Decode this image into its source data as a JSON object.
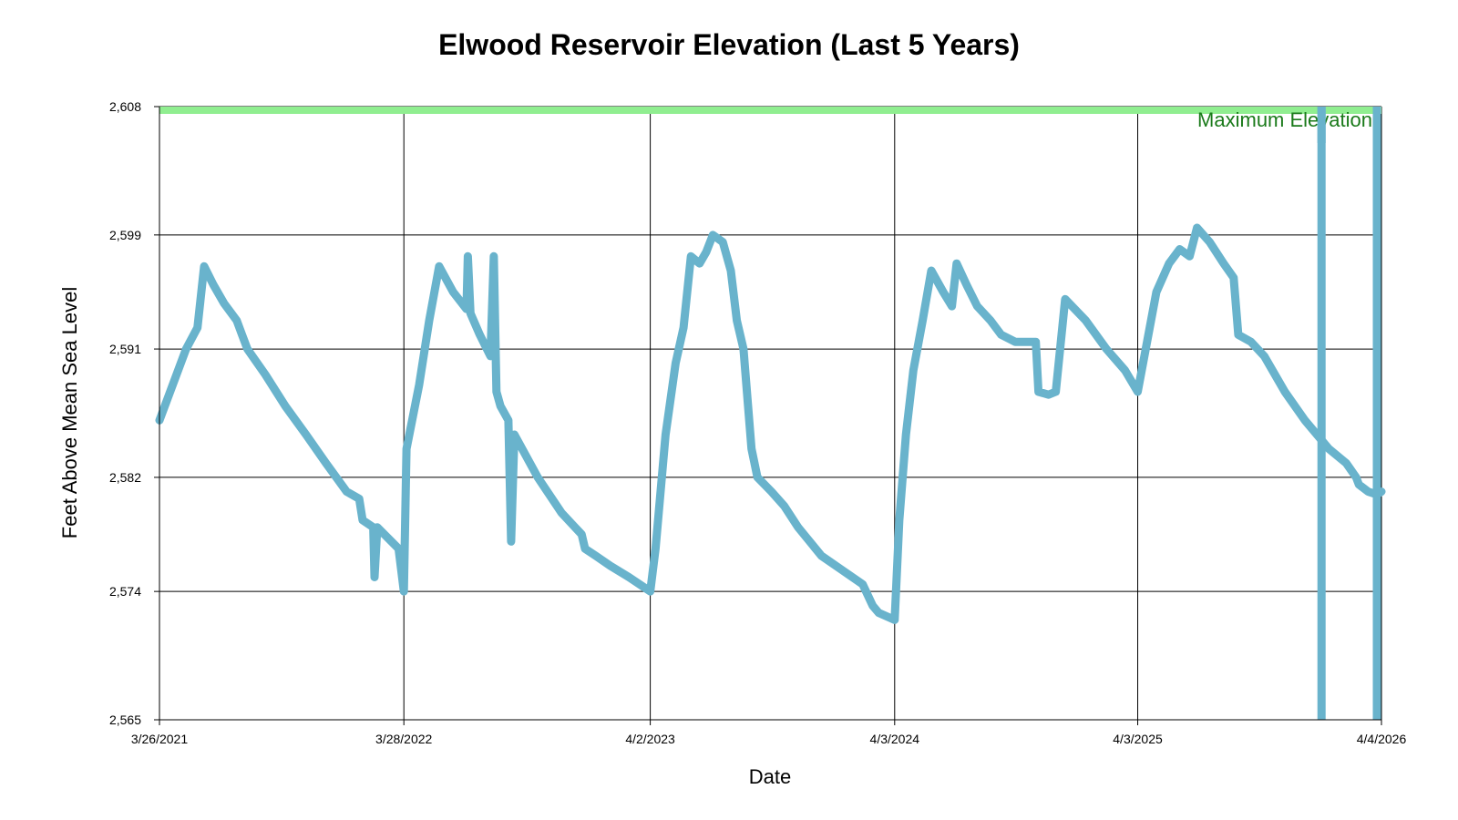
{
  "chart_data": {
    "type": "line",
    "title": "Elwood Reservoir Elevation (Last 5 Years)",
    "xlabel": "Date",
    "ylabel": "Feet Above Mean Sea Level",
    "xlim": [
      "2021-03-26",
      "2026-04-04"
    ],
    "ylim": [
      2565,
      2608
    ],
    "x_ticks": [
      {
        "date": "2021-03-26",
        "label": "3/26/2021"
      },
      {
        "date": "2022-03-28",
        "label": "3/28/2022"
      },
      {
        "date": "2023-04-02",
        "label": "4/2/2023"
      },
      {
        "date": "2024-04-03",
        "label": "4/3/2024"
      },
      {
        "date": "2025-04-03",
        "label": "4/3/2025"
      },
      {
        "date": "2026-04-04",
        "label": "4/4/2026"
      }
    ],
    "y_ticks": [
      {
        "value": 2565,
        "label": "2,565"
      },
      {
        "value": 2574,
        "label": "2,574"
      },
      {
        "value": 2582,
        "label": "2,582"
      },
      {
        "value": 2591,
        "label": "2,591"
      },
      {
        "value": 2599,
        "label": "2,599"
      },
      {
        "value": 2608,
        "label": "2,608"
      }
    ],
    "grid": true,
    "colors": {
      "series": "#69b3cc",
      "reference": "#90ee90",
      "reference_text": "#1a7a1a"
    },
    "reference_line": {
      "value": 2608,
      "label": "Maximum Elevation"
    },
    "series": [
      {
        "points": [
          [
            "2021-03-26",
            2586.0
          ],
          [
            "2021-04-15",
            2588.5
          ],
          [
            "2021-05-05",
            2591.0
          ],
          [
            "2021-05-22",
            2592.5
          ],
          [
            "2021-06-01",
            2596.8
          ],
          [
            "2021-06-15",
            2595.5
          ],
          [
            "2021-07-01",
            2594.2
          ],
          [
            "2021-07-20",
            2593.0
          ],
          [
            "2021-07-28",
            2592.0
          ],
          [
            "2021-08-05",
            2591.0
          ],
          [
            "2021-09-01",
            2589.2
          ],
          [
            "2021-10-01",
            2587.0
          ],
          [
            "2021-11-01",
            2585.0
          ],
          [
            "2021-12-01",
            2583.0
          ],
          [
            "2022-01-01",
            2581.0
          ],
          [
            "2022-01-20",
            2580.5
          ],
          [
            "2022-01-25",
            2579.0
          ],
          [
            "2022-02-10",
            2578.5
          ],
          [
            "2022-02-12",
            2575.0
          ],
          [
            "2022-02-16",
            2578.5
          ],
          [
            "2022-03-20",
            2577.0
          ],
          [
            "2022-03-28",
            2574.0
          ],
          [
            "2022-04-01",
            2584.0
          ],
          [
            "2022-04-20",
            2588.5
          ],
          [
            "2022-05-05",
            2593.0
          ],
          [
            "2022-05-20",
            2596.8
          ],
          [
            "2022-06-10",
            2595.0
          ],
          [
            "2022-06-30",
            2593.8
          ],
          [
            "2022-07-02",
            2597.5
          ],
          [
            "2022-07-06",
            2593.5
          ],
          [
            "2022-07-20",
            2592.0
          ],
          [
            "2022-08-05",
            2590.5
          ],
          [
            "2022-08-10",
            2597.5
          ],
          [
            "2022-08-14",
            2588.0
          ],
          [
            "2022-08-20",
            2587.0
          ],
          [
            "2022-09-01",
            2586.0
          ],
          [
            "2022-09-05",
            2577.5
          ],
          [
            "2022-09-10",
            2585.0
          ],
          [
            "2022-10-15",
            2582.0
          ],
          [
            "2022-11-20",
            2579.5
          ],
          [
            "2022-12-20",
            2578.0
          ],
          [
            "2022-12-25",
            2577.0
          ],
          [
            "2023-01-10",
            2576.5
          ],
          [
            "2023-02-01",
            2575.8
          ],
          [
            "2023-03-01",
            2575.0
          ],
          [
            "2023-04-02",
            2574.0
          ],
          [
            "2023-04-10",
            2577.0
          ],
          [
            "2023-04-25",
            2585.0
          ],
          [
            "2023-05-10",
            2590.0
          ],
          [
            "2023-05-22",
            2592.5
          ],
          [
            "2023-06-02",
            2597.5
          ],
          [
            "2023-06-15",
            2597.0
          ],
          [
            "2023-06-25",
            2597.8
          ],
          [
            "2023-07-05",
            2599.0
          ],
          [
            "2023-07-20",
            2598.5
          ],
          [
            "2023-08-01",
            2596.5
          ],
          [
            "2023-08-10",
            2593.0
          ],
          [
            "2023-08-20",
            2591.0
          ],
          [
            "2023-09-01",
            2584.0
          ],
          [
            "2023-09-10",
            2582.0
          ],
          [
            "2023-10-01",
            2581.0
          ],
          [
            "2023-10-20",
            2580.0
          ],
          [
            "2023-11-10",
            2578.5
          ],
          [
            "2023-12-15",
            2576.5
          ],
          [
            "2024-01-15",
            2575.5
          ],
          [
            "2024-02-15",
            2574.5
          ],
          [
            "2024-03-01",
            2573.0
          ],
          [
            "2024-03-10",
            2572.5
          ],
          [
            "2024-04-03",
            2572.0
          ],
          [
            "2024-04-10",
            2579.0
          ],
          [
            "2024-04-20",
            2585.0
          ],
          [
            "2024-05-01",
            2589.5
          ],
          [
            "2024-05-15",
            2593.0
          ],
          [
            "2024-05-28",
            2596.5
          ],
          [
            "2024-06-15",
            2595.0
          ],
          [
            "2024-06-28",
            2594.0
          ],
          [
            "2024-07-05",
            2597.0
          ],
          [
            "2024-07-20",
            2595.5
          ],
          [
            "2024-08-05",
            2594.0
          ],
          [
            "2024-08-25",
            2593.0
          ],
          [
            "2024-09-10",
            2592.0
          ],
          [
            "2024-10-01",
            2591.5
          ],
          [
            "2024-11-01",
            2591.5
          ],
          [
            "2024-11-05",
            2588.0
          ],
          [
            "2024-11-20",
            2587.8
          ],
          [
            "2024-12-01",
            2588.0
          ],
          [
            "2024-12-15",
            2594.5
          ],
          [
            "2025-01-15",
            2593.0
          ],
          [
            "2025-02-15",
            2591.0
          ],
          [
            "2025-03-15",
            2589.5
          ],
          [
            "2025-04-03",
            2588.0
          ],
          [
            "2025-04-15",
            2591.0
          ],
          [
            "2025-05-01",
            2595.0
          ],
          [
            "2025-05-20",
            2597.0
          ],
          [
            "2025-06-05",
            2598.0
          ],
          [
            "2025-06-20",
            2597.5
          ],
          [
            "2025-07-01",
            2599.5
          ],
          [
            "2025-07-20",
            2598.5
          ],
          [
            "2025-08-10",
            2597.0
          ],
          [
            "2025-08-25",
            2596.0
          ],
          [
            "2025-09-01",
            2592.0
          ],
          [
            "2025-09-20",
            2591.5
          ],
          [
            "2025-10-10",
            2590.5
          ],
          [
            "2025-11-10",
            2588.0
          ],
          [
            "2025-12-10",
            2586.0
          ],
          [
            "2026-01-15",
            2584.0
          ],
          [
            "2026-02-10",
            2583.0
          ],
          [
            "2026-02-25",
            2582.0
          ],
          [
            "2026-03-01",
            2581.5
          ],
          [
            "2026-03-15",
            2581.0
          ],
          [
            "2026-03-28",
            2580.8
          ],
          [
            "2026-04-04",
            2581.0
          ]
        ]
      }
    ],
    "drops": [
      {
        "date": "2026-01-04",
        "from": 2608,
        "to": 2565
      },
      {
        "date": "2026-04-04",
        "from": 2608,
        "to": 2565
      }
    ]
  }
}
